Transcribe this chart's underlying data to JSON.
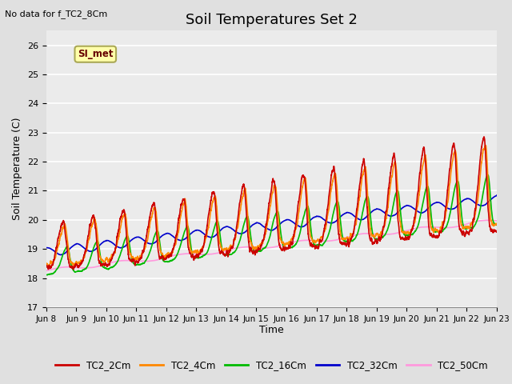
{
  "title": "Soil Temperatures Set 2",
  "xlabel": "Time",
  "ylabel": "Soil Temperature (C)",
  "annotation_text": "No data for f_TC2_8Cm",
  "si_met_label": "SI_met",
  "ylim": [
    17.0,
    26.5
  ],
  "yticks": [
    17.0,
    18.0,
    19.0,
    20.0,
    21.0,
    22.0,
    23.0,
    24.0,
    25.0,
    26.0
  ],
  "x_labels": [
    "Jun 8",
    "Jun 9",
    "Jun 10",
    "Jun 11",
    "Jun 12",
    "Jun 13",
    "Jun 14",
    "Jun 15",
    "Jun 16",
    "Jun 17",
    "Jun 18",
    "Jun 19",
    "Jun 20",
    "Jun 21",
    "Jun 22",
    "Jun 23"
  ],
  "series_colors": {
    "TC2_2Cm": "#cc0000",
    "TC2_4Cm": "#ff8800",
    "TC2_16Cm": "#00bb00",
    "TC2_32Cm": "#0000cc",
    "TC2_50Cm": "#ff99dd"
  },
  "background_color": "#e0e0e0",
  "plot_bg_color": "#ebebeb",
  "grid_color": "#ffffff",
  "line_width": 1.2,
  "figsize": [
    6.4,
    4.8
  ],
  "dpi": 100
}
